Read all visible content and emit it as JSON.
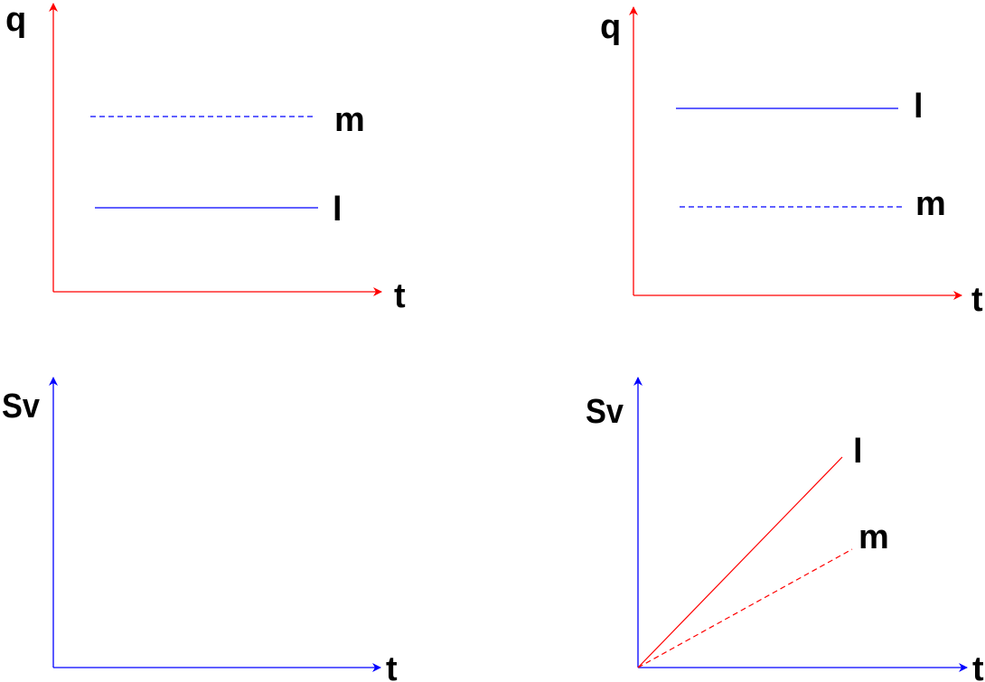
{
  "colors": {
    "charge_axes": "#ff0000",
    "charge_lines": "#0000ff",
    "sv_axes": "#0000ff",
    "sv_lines": "#ff0000"
  },
  "panels": {
    "top_left": {
      "y_label": "q",
      "x_label": "t",
      "upper_label": "m",
      "lower_label": "l"
    },
    "top_right": {
      "y_label": "q",
      "x_label": "t",
      "upper_label": "l",
      "lower_label": "m"
    },
    "bottom_left": {
      "y_label": "Sv",
      "x_label": "t"
    },
    "bottom_right": {
      "y_label": "Sv",
      "x_label": "t",
      "upper_label": "l",
      "lower_label": "m"
    }
  }
}
